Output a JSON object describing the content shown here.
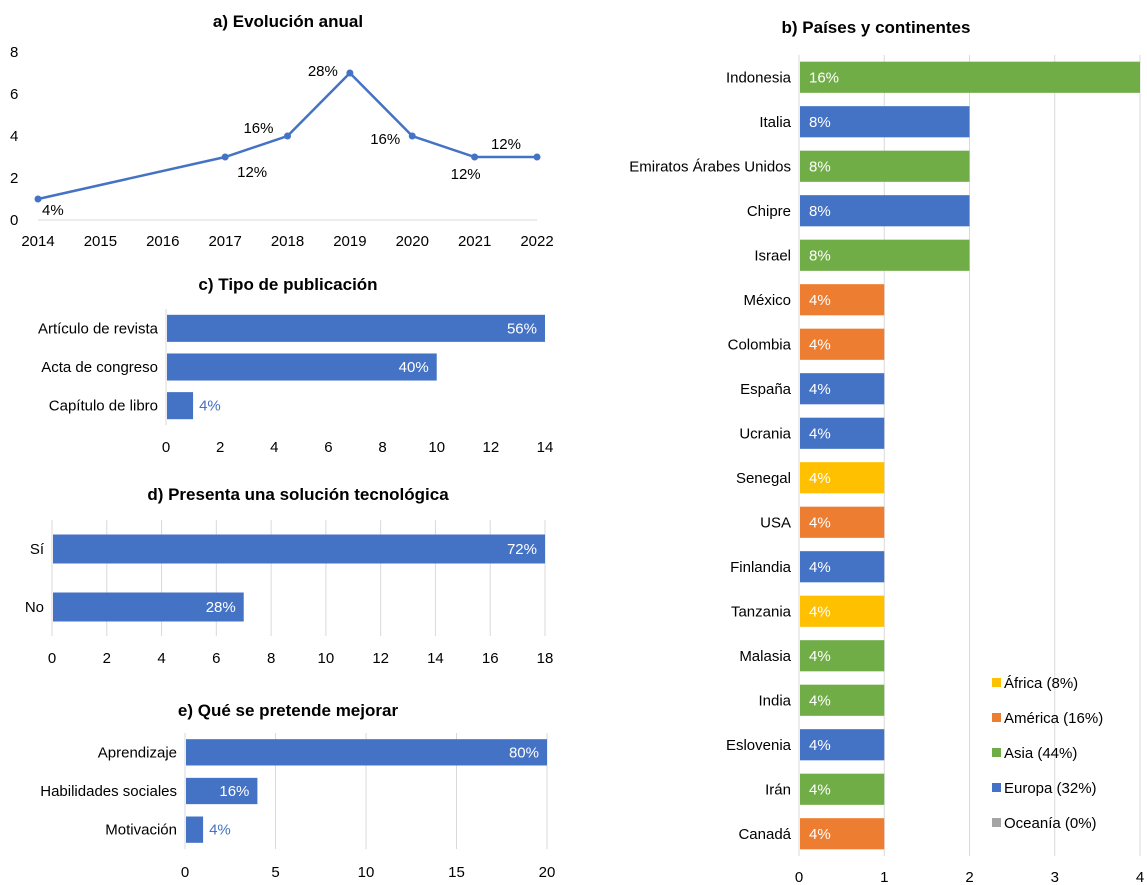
{
  "palette": {
    "blue": "#4472C4",
    "orange": "#ED7D31",
    "green": "#70AD47",
    "yellow": "#FFC000",
    "gray": "#A5A5A5",
    "axis": "#D9D9D9",
    "text": "#000000",
    "white": "#FFFFFF"
  },
  "chart_data": [
    {
      "id": "a",
      "type": "line",
      "title": "a) Evolución anual",
      "x": [
        "2014",
        "2015",
        "2016",
        "2017",
        "2018",
        "2019",
        "2020",
        "2021",
        "2022"
      ],
      "points": [
        {
          "x": "2014",
          "y": 1,
          "label": "4%"
        },
        {
          "x": "2017",
          "y": 3,
          "label": "12%"
        },
        {
          "x": "2018",
          "y": 4,
          "label": "16%"
        },
        {
          "x": "2019",
          "y": 7,
          "label": "28%"
        },
        {
          "x": "2020",
          "y": 4,
          "label": "16%"
        },
        {
          "x": "2021",
          "y": 3,
          "label": "12%"
        },
        {
          "x": "2022",
          "y": 3,
          "label": "12%"
        }
      ],
      "ylim": [
        0,
        8
      ],
      "yticks": [
        "0",
        "2",
        "4",
        "6",
        "8"
      ],
      "grid": false
    },
    {
      "id": "b",
      "type": "bar",
      "orientation": "horizontal",
      "title": "b) Países y continentes",
      "categories": [
        "Indonesia",
        "Italia",
        "Emiratos Árabes Unidos",
        "Chipre",
        "Israel",
        "México",
        "Colombia",
        "España",
        "Ucrania",
        "Senegal",
        "USA",
        "Finlandia",
        "Tanzania",
        "Malasia",
        "India",
        "Eslovenia",
        "Irán",
        "Canadá"
      ],
      "values": [
        4,
        2,
        2,
        2,
        2,
        1,
        1,
        1,
        1,
        1,
        1,
        1,
        1,
        1,
        1,
        1,
        1,
        1
      ],
      "labels": [
        "16%",
        "8%",
        "8%",
        "8%",
        "8%",
        "4%",
        "4%",
        "4%",
        "4%",
        "4%",
        "4%",
        "4%",
        "4%",
        "4%",
        "4%",
        "4%",
        "4%",
        "4%"
      ],
      "groups": [
        "Asia",
        "Europa",
        "Asia",
        "Europa",
        "Asia",
        "América",
        "América",
        "Europa",
        "Europa",
        "África",
        "América",
        "Europa",
        "África",
        "Asia",
        "Asia",
        "Europa",
        "Asia",
        "América"
      ],
      "xlim": [
        0,
        4
      ],
      "xticks": [
        "0",
        "1",
        "2",
        "3",
        "4"
      ],
      "legend": {
        "placement": "bottom-right",
        "entries": [
          {
            "group": "África",
            "label": "África (8%)",
            "color": "#FFC000"
          },
          {
            "group": "América",
            "label": "América (16%)",
            "color": "#ED7D31"
          },
          {
            "group": "Asia",
            "label": "Asia (44%)",
            "color": "#70AD47"
          },
          {
            "group": "Europa",
            "label": "Europa (32%)",
            "color": "#4472C4"
          },
          {
            "group": "Oceanía",
            "label": "Oceanía (0%)",
            "color": "#A5A5A5"
          }
        ]
      },
      "grid": true
    },
    {
      "id": "c",
      "type": "bar",
      "orientation": "horizontal",
      "title": "c) Tipo de publicación",
      "categories": [
        "Artículo de revista",
        "Acta de congreso",
        "Capítulo de libro"
      ],
      "values": [
        14,
        10,
        1
      ],
      "labels": [
        "56%",
        "40%",
        "4%"
      ],
      "xlim": [
        0,
        14
      ],
      "xticks": [
        "0",
        "2",
        "4",
        "6",
        "8",
        "10",
        "12",
        "14"
      ],
      "grid": false
    },
    {
      "id": "d",
      "type": "bar",
      "orientation": "horizontal",
      "title": "d) Presenta una solución tecnológica",
      "categories": [
        "Sí",
        "No"
      ],
      "values": [
        18,
        7
      ],
      "labels": [
        "72%",
        "28%"
      ],
      "xlim": [
        0,
        18
      ],
      "xticks": [
        "0",
        "2",
        "4",
        "6",
        "8",
        "10",
        "12",
        "14",
        "16",
        "18"
      ],
      "grid": true
    },
    {
      "id": "e",
      "type": "bar",
      "orientation": "horizontal",
      "title": "e) Qué se pretende mejorar",
      "categories": [
        "Aprendizaje",
        "Habilidades sociales",
        "Motivación"
      ],
      "values": [
        20,
        4,
        1
      ],
      "labels": [
        "80%",
        "16%",
        "4%"
      ],
      "xlim": [
        0,
        20
      ],
      "xticks": [
        "0",
        "5",
        "10",
        "15",
        "20"
      ],
      "grid": true
    }
  ]
}
